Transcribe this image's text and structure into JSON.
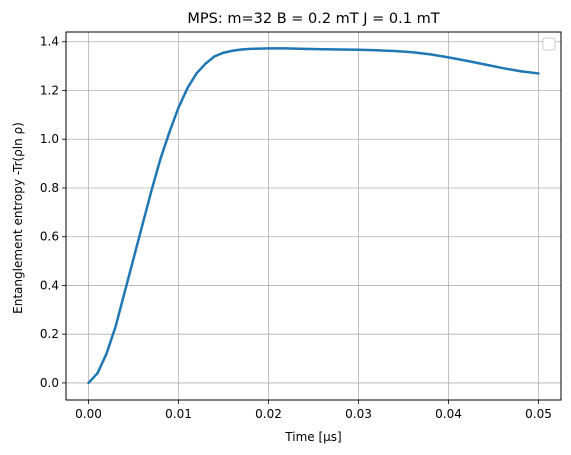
{
  "chart_data": {
    "type": "line",
    "title": "MPS: m=32 B = 0.2 mT J = 0.1 mT",
    "xlabel": "Time [μs]",
    "ylabel": "Entanglement entropy -Tr(ρln ρ)",
    "xlim": [
      -0.0025,
      0.0525
    ],
    "ylim": [
      -0.07,
      1.44
    ],
    "xticks": [
      0.0,
      0.01,
      0.02,
      0.03,
      0.04,
      0.05
    ],
    "xtick_labels": [
      "0.00",
      "0.01",
      "0.02",
      "0.03",
      "0.04",
      "0.05"
    ],
    "yticks": [
      0.0,
      0.2,
      0.4,
      0.6,
      0.8,
      1.0,
      1.2,
      1.4
    ],
    "ytick_labels": [
      "0.0",
      "0.2",
      "0.4",
      "0.6",
      "0.8",
      "1.0",
      "1.2",
      "1.4"
    ],
    "grid": true,
    "legend": "top-right",
    "series": [
      {
        "color": "#1f77b4",
        "x": [
          0.0,
          0.001,
          0.002,
          0.003,
          0.004,
          0.005,
          0.006,
          0.007,
          0.008,
          0.009,
          0.01,
          0.011,
          0.012,
          0.013,
          0.014,
          0.015,
          0.016,
          0.017,
          0.018,
          0.019,
          0.02,
          0.022,
          0.024,
          0.026,
          0.028,
          0.03,
          0.032,
          0.034,
          0.036,
          0.038,
          0.04,
          0.042,
          0.044,
          0.046,
          0.048,
          0.05
        ],
        "y": [
          0.0,
          0.04,
          0.12,
          0.23,
          0.37,
          0.51,
          0.65,
          0.79,
          0.92,
          1.03,
          1.13,
          1.21,
          1.27,
          1.31,
          1.34,
          1.355,
          1.363,
          1.368,
          1.371,
          1.372,
          1.373,
          1.373,
          1.371,
          1.369,
          1.368,
          1.367,
          1.365,
          1.362,
          1.357,
          1.348,
          1.336,
          1.322,
          1.307,
          1.292,
          1.279,
          1.27
        ]
      }
    ]
  }
}
